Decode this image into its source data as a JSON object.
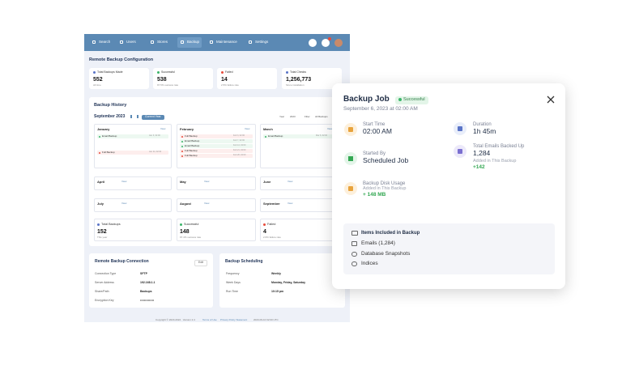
{
  "nav": {
    "items": [
      "Search",
      "Users",
      "Stores",
      "Backup",
      "Maintenance",
      "Settings"
    ]
  },
  "page": {
    "title": "Remote Backup Configuration",
    "stats": [
      {
        "label": "Total Backups Made",
        "value": "552",
        "note": "All time",
        "color": "#5a74c7"
      },
      {
        "label": "Successful",
        "value": "538",
        "note": "97.5% success rate",
        "color": "#3bb56a"
      },
      {
        "label": "Failed",
        "value": "14",
        "note": "2.5% failure rate",
        "color": "#e74c3c"
      },
      {
        "label": "Total Checks",
        "value": "1,256,773",
        "note": "Since installation",
        "color": "#5a74c7"
      }
    ],
    "history": {
      "title": "Backup History",
      "period": "September 2023",
      "button": "Current Year",
      "filters": [
        "Year",
        "2023",
        "Filter",
        "All Backups"
      ],
      "months": [
        {
          "name": "January",
          "link": "View",
          "entries": [
            {
              "label": "Email Backup",
              "time": "Jan 3, 02:00",
              "color": "#3bb56a"
            },
            {
              "label": "Full Backup",
              "time": "Jan 24, 02:00",
              "color": "#e74c3c"
            }
          ]
        },
        {
          "name": "February",
          "link": "View",
          "entries": [
            {
              "label": "Full Backup",
              "time": "Feb 3, 02:00",
              "color": "#e74c3c"
            },
            {
              "label": "Email Backup",
              "time": "Feb 7, 02:00",
              "color": "#3bb56a"
            },
            {
              "label": "Email Backup",
              "time": "Feb 14, 02:00",
              "color": "#3bb56a"
            },
            {
              "label": "Full Backup",
              "time": "Feb 21, 02:00",
              "color": "#e74c3c"
            },
            {
              "label": "Full Backup",
              "time": "Feb 28, 02:00",
              "color": "#e74c3c"
            }
          ]
        },
        {
          "name": "March",
          "link": "View",
          "entries": [
            {
              "label": "Email Backup",
              "time": "Mar 6, 02:00",
              "color": "#3bb56a"
            }
          ]
        },
        {
          "name": "April",
          "link": "View",
          "entries": []
        },
        {
          "name": "May",
          "link": "View",
          "entries": []
        },
        {
          "name": "June",
          "link": "View",
          "entries": []
        },
        {
          "name": "July",
          "link": "View",
          "entries": []
        },
        {
          "name": "August",
          "link": "View",
          "entries": []
        },
        {
          "name": "September",
          "link": "View",
          "entries": []
        }
      ],
      "summary": [
        {
          "label": "Total Backups",
          "value": "152",
          "note": "This year",
          "color": "#5a74c7"
        },
        {
          "label": "Successful",
          "value": "148",
          "note": "97.4% success rate",
          "color": "#3bb56a"
        },
        {
          "label": "Failed",
          "value": "4",
          "note": "2.6% failure rate",
          "color": "#e74c3c"
        }
      ]
    },
    "connection": {
      "title": "Remote Backup Connection",
      "button": "Edit",
      "rows": [
        [
          "Connection Type",
          "SFTP"
        ],
        [
          "Server Address",
          "192.168.1.1"
        ],
        [
          "Share/Path",
          "Backups"
        ],
        [
          "Encryption Key",
          "••••••••••••••"
        ]
      ]
    },
    "scheduling": {
      "title": "Backup Scheduling",
      "rows": [
        [
          "Frequency",
          "Weekly"
        ],
        [
          "Week Days",
          "Monday, Friday, Saturday"
        ],
        [
          "Run Time",
          "10:15 pm"
        ]
      ]
    },
    "footer": [
      "Copyright © 2023-2024 · Version 2.4",
      "Terms of Use",
      "Privacy Policy Statement",
      "2023-09-10 02:00 UTC"
    ]
  },
  "modal": {
    "title": "Backup Job",
    "badge": "Successful",
    "date": "September 6, 2023 at 02:00 AM",
    "details": [
      {
        "label": "Start Time",
        "value": "02:00 AM"
      },
      {
        "label": "Duration",
        "value": "1h 45m"
      },
      {
        "label": "Started By",
        "value": "Scheduled Job"
      },
      {
        "label": "Total Emails Backed Up",
        "value": "1,284",
        "note": "Added in This Backup",
        "delta": "+142"
      },
      {
        "label": "Backup Disk Usage",
        "note": "Added in This Backup",
        "delta": "+ 148 MB"
      }
    ],
    "included": {
      "title": "Items Included in Backup",
      "items": [
        "Emails (1,284)",
        "Database Snapshots",
        "Indices"
      ]
    }
  }
}
